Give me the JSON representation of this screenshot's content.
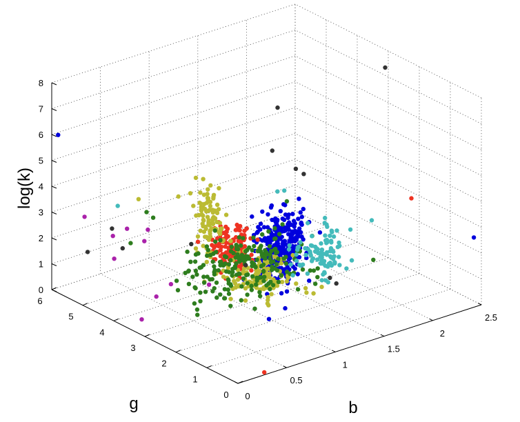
{
  "chart_data": {
    "type": "scatter",
    "projection": "3d",
    "title": "",
    "xlabel": "b",
    "ylabel": "g",
    "zlabel": "log(k)",
    "xlim": [
      0,
      2.5
    ],
    "ylim": [
      0,
      6
    ],
    "zlim": [
      0,
      8
    ],
    "x_ticks": [
      "0",
      "0.5",
      "1",
      "1.5",
      "2",
      "2.5"
    ],
    "y_ticks": [
      "0",
      "1",
      "2",
      "3",
      "4",
      "5",
      "6"
    ],
    "z_ticks": [
      "0",
      "1",
      "2",
      "3",
      "4",
      "5",
      "6",
      "7",
      "8"
    ],
    "grid": true,
    "legend": "none",
    "series": [
      {
        "color": "#0000dd",
        "cluster": {
          "center": [
            1.3,
            2.7,
            2.05
          ],
          "spread": [
            0.13,
            0.18,
            0.65
          ],
          "count": 280
        },
        "points": [
          [
            0.05,
            5.95,
            5.95
          ],
          [
            2.55,
            0.4,
            2.3
          ],
          [
            1.25,
            2.55,
            3.6
          ],
          [
            1.55,
            2.9,
            3.5
          ],
          [
            1.4,
            2.1,
            1.0
          ],
          [
            1.1,
            3.0,
            3.3
          ]
        ]
      },
      {
        "color": "#ee3322",
        "cluster": {
          "center": [
            1.02,
            3.45,
            1.95
          ],
          "spread": [
            0.08,
            0.22,
            0.38
          ],
          "count": 120
        },
        "points": [
          [
            0.35,
            0.25,
            -0.15
          ],
          [
            2.1,
            1.0,
            4.0
          ],
          [
            0.95,
            3.6,
            2.9
          ]
        ]
      },
      {
        "color": "#bbbb33",
        "cluster": {
          "center": [
            0.75,
            3.3,
            3.45
          ],
          "spread": [
            0.06,
            0.12,
            0.6
          ],
          "count": 90
        },
        "points": [
          [
            1.25,
            2.05,
            1.1
          ],
          [
            1.3,
            1.9,
            0.95
          ],
          [
            1.12,
            2.3,
            1.05
          ],
          [
            0.35,
            4.3,
            4.1
          ],
          [
            0.6,
            3.8,
            4.2
          ],
          [
            0.62,
            3.3,
            5.2
          ],
          [
            1.45,
            1.85,
            0.85
          ],
          [
            1.35,
            1.8,
            0.75
          ]
        ]
      },
      {
        "color": "#bbbb33",
        "cluster": {
          "center": [
            1.05,
            2.55,
            1.35
          ],
          "spread": [
            0.15,
            0.25,
            0.38
          ],
          "count": 130
        },
        "points": []
      },
      {
        "color": "#2e7d1e",
        "cluster": {
          "center": [
            1.0,
            2.95,
            1.6
          ],
          "spread": [
            0.3,
            0.55,
            0.45
          ],
          "count": 210
        },
        "points": [
          [
            0.4,
            4.2,
            3.6
          ],
          [
            0.5,
            4.3,
            3.2
          ],
          [
            1.4,
            1.9,
            1.0
          ],
          [
            1.9,
            1.6,
            1.5
          ],
          [
            0.3,
            4.4,
            2.4
          ]
        ]
      },
      {
        "color": "#44bbbb",
        "cluster": {
          "center": [
            1.6,
            2.3,
            1.75
          ],
          "spread": [
            0.12,
            0.18,
            0.42
          ],
          "count": 95
        },
        "points": [
          [
            0.2,
            4.5,
            3.9
          ],
          [
            1.25,
            2.65,
            4.3
          ],
          [
            1.9,
            1.65,
            3.0
          ],
          [
            1.4,
            2.9,
            4.0
          ],
          [
            1.5,
            2.7,
            1.1
          ]
        ]
      },
      {
        "color": "#aa22aa",
        "cluster": null,
        "points": [
          [
            0.05,
            5.1,
            3.3
          ],
          [
            0.2,
            4.2,
            3.2
          ],
          [
            0.1,
            4.3,
            2.1
          ],
          [
            0.15,
            4.5,
            2.8
          ],
          [
            0.3,
            3.1,
            1.6
          ],
          [
            0.5,
            2.5,
            1.7
          ],
          [
            0.15,
            3.1,
            1.3
          ],
          [
            0.0,
            3.1,
            0.6
          ],
          [
            0.35,
            4.0,
            3.1
          ],
          [
            0.25,
            3.8,
            2.9
          ]
        ]
      },
      {
        "color": "#333333",
        "cluster": null,
        "points": [
          [
            2.5,
            3.1,
            7.3
          ],
          [
            1.65,
            3.9,
            6.3
          ],
          [
            0.3,
            5.0,
            2.6
          ],
          [
            0.05,
            5.0,
            2.0
          ],
          [
            0.25,
            4.5,
            2.2
          ],
          [
            1.5,
            3.6,
            5.0
          ],
          [
            1.6,
            2.9,
            4.4
          ],
          [
            1.55,
            3.0,
            4.6
          ],
          [
            1.1,
            3.2,
            1.3
          ],
          [
            1.55,
            1.9,
            1.05
          ],
          [
            1.6,
            1.85,
            0.8
          ],
          [
            0.7,
            3.7,
            2.3
          ]
        ]
      }
    ]
  }
}
